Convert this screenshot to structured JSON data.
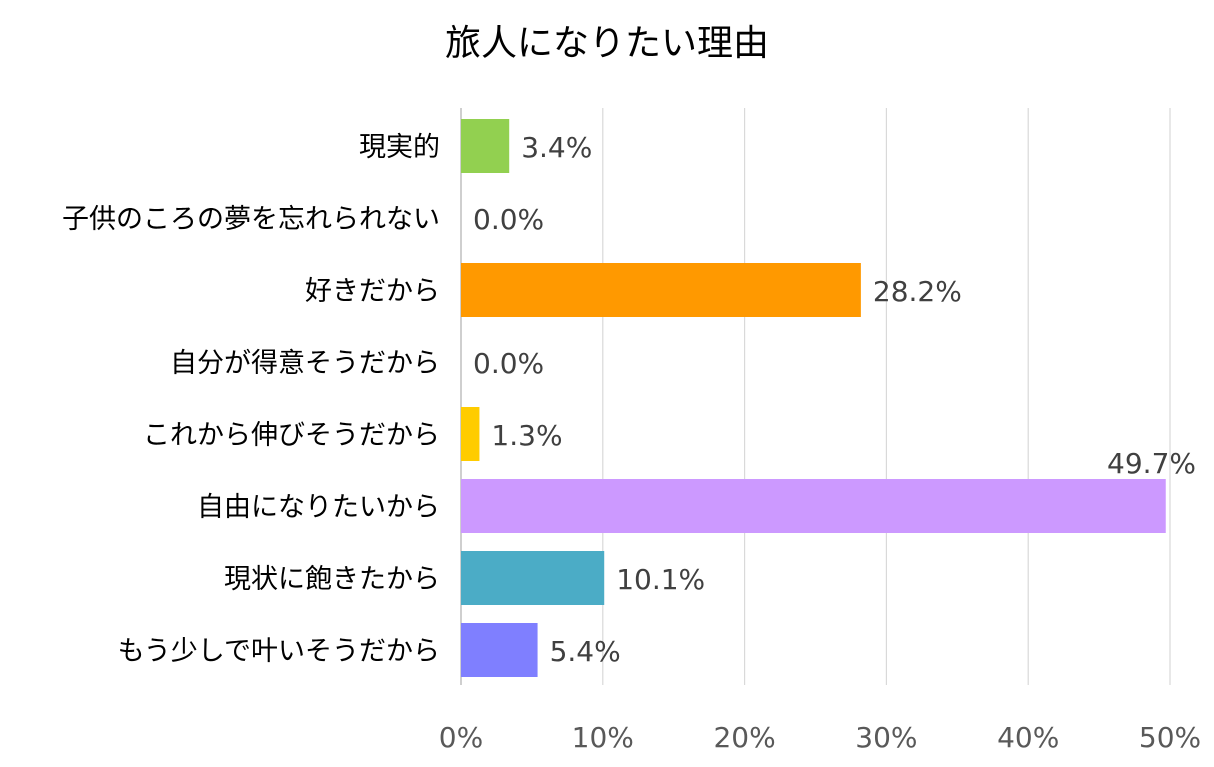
{
  "chart_data": {
    "type": "bar",
    "orientation": "horizontal",
    "title": "旅人になりたい理由",
    "xlabel": "",
    "ylabel": "",
    "xlim": [
      0,
      50
    ],
    "x_ticks": [
      "0%",
      "10%",
      "20%",
      "30%",
      "40%",
      "50%"
    ],
    "grid": true,
    "legend": "none",
    "categories": [
      "現実的",
      "子供のころの夢を忘れられない",
      "好きだから",
      "自分が得意そうだから",
      "これから伸びそうだから",
      "自由になりたいから",
      "現状に飽きたから",
      "もう少しで叶いそうだから"
    ],
    "values": [
      3.4,
      0.0,
      28.2,
      0.0,
      1.3,
      49.7,
      10.1,
      5.4
    ],
    "value_labels": [
      "3.4%",
      "0.0%",
      "28.2%",
      "0.0%",
      "1.3%",
      "49.7%",
      "10.1%",
      "5.4%"
    ],
    "colors": [
      "#92d050",
      "#ffc000",
      "#ff9900",
      "#ffc000",
      "#ffcc00",
      "#cc99ff",
      "#4bacc6",
      "#7f7fff"
    ]
  }
}
